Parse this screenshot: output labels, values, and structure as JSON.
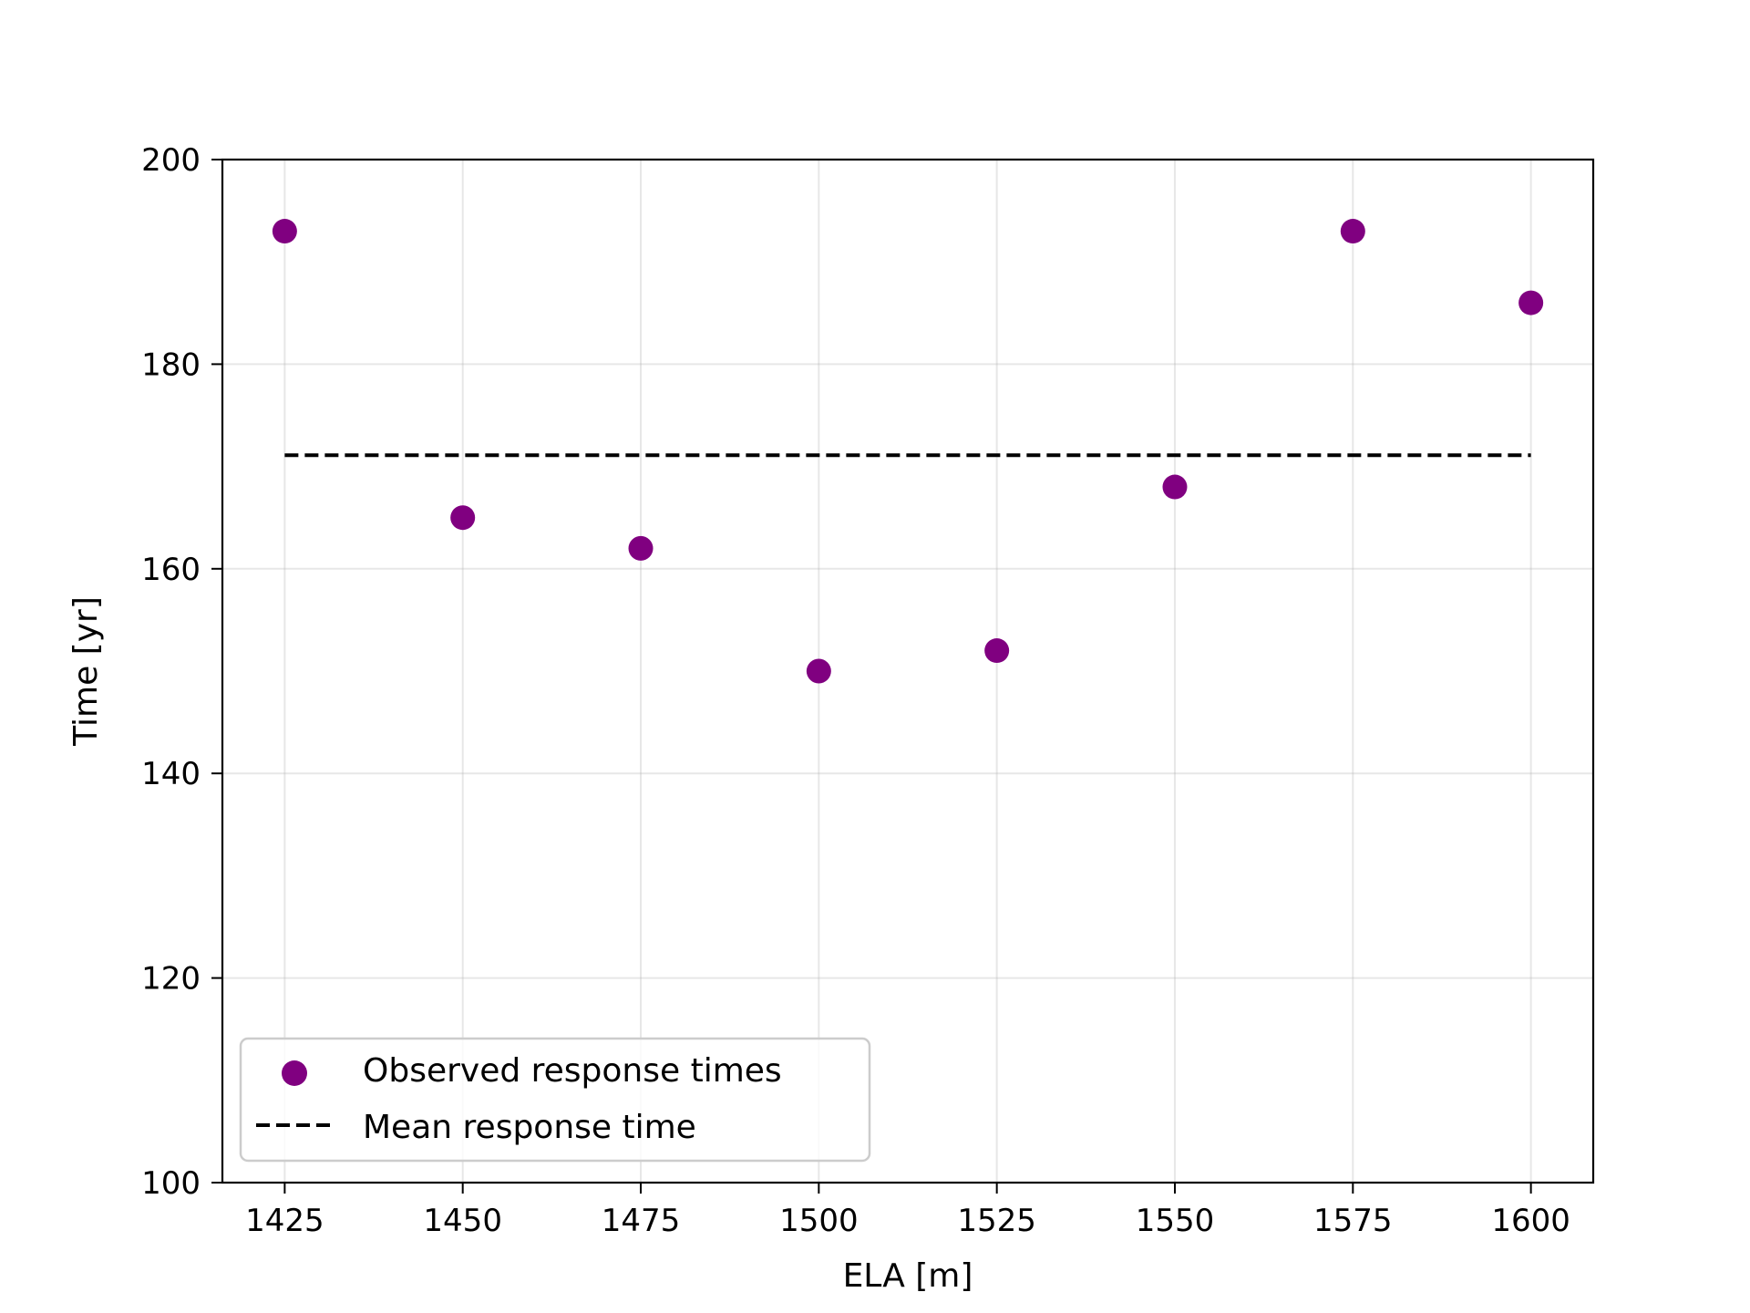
{
  "chart_data": {
    "type": "scatter",
    "title": "",
    "xlabel": "ELA [m]",
    "ylabel": "Time [yr]",
    "xlim": [
      1416.25,
      1608.75
    ],
    "ylim": [
      100,
      200
    ],
    "xticks": [
      1425,
      1450,
      1475,
      1500,
      1525,
      1550,
      1575,
      1600
    ],
    "yticks": [
      100,
      120,
      140,
      160,
      180,
      200
    ],
    "grid": true,
    "legend_position": "lower-left",
    "series": [
      {
        "name": "Observed response times",
        "kind": "scatter",
        "color": "#800080",
        "x": [
          1425,
          1450,
          1475,
          1500,
          1525,
          1550,
          1575,
          1600
        ],
        "y": [
          193,
          165,
          162,
          150,
          152,
          168,
          193,
          186
        ]
      },
      {
        "name": "Mean response time",
        "kind": "line",
        "style": "dashed",
        "color": "#000000",
        "x": [
          1425,
          1600
        ],
        "y": [
          171.1,
          171.1
        ]
      }
    ]
  }
}
